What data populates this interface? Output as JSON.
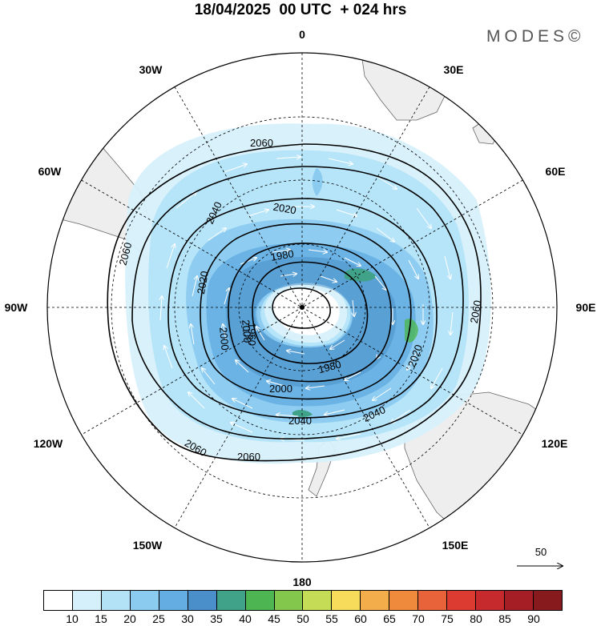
{
  "title": "18/04/2025  00 UTC  + 024 hrs",
  "brand": "MODES©",
  "map": {
    "projection": "south polar stereographic",
    "meridian_labels": {
      "top": "0",
      "bottom": "180",
      "left": "90W",
      "right": "90E",
      "upper_left_1": "30W",
      "upper_left_2": "60W",
      "upper_right_1": "30E",
      "upper_right_2": "60E",
      "lower_left_1": "120W",
      "lower_left_2": "150W",
      "lower_right_1": "120E",
      "lower_right_2": "150E"
    },
    "contour_labels": [
      "2060",
      "2060",
      "2040",
      "2020",
      "2020",
      "1980",
      "1980",
      "2000",
      "2000",
      "2000",
      "2040",
      "2040",
      "2060",
      "2060",
      "2060",
      "1960",
      "2020",
      "2060"
    ],
    "contour_levels": [
      1960,
      1980,
      2000,
      2020,
      2040,
      2060
    ],
    "land_color": "#eeeeee"
  },
  "vector_scale": {
    "value": "50"
  },
  "legend": {
    "ticks": [
      "10",
      "15",
      "20",
      "25",
      "30",
      "35",
      "40",
      "45",
      "50",
      "55",
      "60",
      "65",
      "70",
      "75",
      "80",
      "85",
      "90"
    ],
    "colors": [
      "#ffffff",
      "#d6f0fb",
      "#b3e2f7",
      "#8ccbf0",
      "#63ade2",
      "#4a8fc9",
      "#41a28a",
      "#4db653",
      "#84c74d",
      "#c5dc56",
      "#f7dc5c",
      "#f3ae4b",
      "#ef8a3c",
      "#e8623a",
      "#dc3b31",
      "#c72a2c",
      "#a51e25",
      "#861a1d"
    ]
  }
}
